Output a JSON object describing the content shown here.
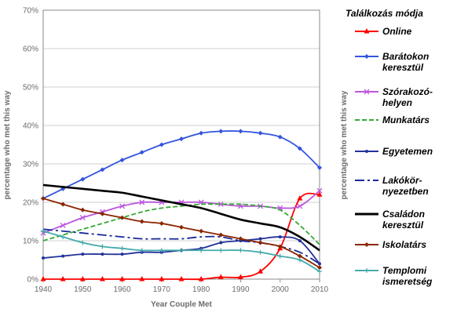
{
  "chart_data": {
    "type": "line",
    "xlabel": "Year Couple Met",
    "ylabel": "percentage who met this way",
    "ylabel_right": "percentage who met this way",
    "xlim": [
      1940,
      2010
    ],
    "ylim": [
      0,
      70
    ],
    "x_ticks": [
      "1940",
      "1950",
      "1960",
      "1970",
      "1980",
      "1990",
      "2000",
      "2010"
    ],
    "y_ticks": [
      "0%",
      "10%",
      "20%",
      "30%",
      "40%",
      "50%",
      "60%",
      "70%"
    ],
    "grid": true,
    "legend_title": "Találkozás módja",
    "legend_position": "right",
    "x": [
      1940,
      1945,
      1950,
      1955,
      1960,
      1965,
      1970,
      1975,
      1980,
      1985,
      1990,
      1995,
      2000,
      2005,
      2010
    ],
    "series": [
      {
        "name": "Online",
        "label_lines": [
          "Online"
        ],
        "color": "#ff0000",
        "marker": "triangle",
        "dash": "",
        "values": [
          0,
          0,
          0,
          0,
          0,
          0,
          0,
          0,
          0,
          0.5,
          0.5,
          2,
          8,
          21,
          22
        ]
      },
      {
        "name": "Barátokon keresztül",
        "label_lines": [
          "Barátokon",
          "keresztül"
        ],
        "color": "#3355dd",
        "marker": "diamond",
        "dash": "",
        "values": [
          21,
          23.5,
          26,
          28.5,
          31,
          33,
          35,
          36.5,
          38,
          38.5,
          38.5,
          38,
          37,
          34,
          29
        ]
      },
      {
        "name": "Szórakozóhelyen",
        "label_lines": [
          "Szórakozó-",
          "helyen"
        ],
        "color": "#bb55dd",
        "marker": "x",
        "dash": "",
        "values": [
          12,
          14,
          16,
          17.5,
          19,
          20,
          20,
          20,
          20,
          19.5,
          19,
          19,
          18.5,
          19,
          23
        ]
      },
      {
        "name": "Munkatárs",
        "label_lines": [
          "Munkatárs"
        ],
        "color": "#33aa33",
        "marker": "",
        "dash": "6,3",
        "values": [
          10,
          11.5,
          13,
          14.5,
          16,
          17.5,
          18.5,
          19,
          19.5,
          19.5,
          19.5,
          19,
          18,
          14,
          9
        ]
      },
      {
        "name": "Egyetemen",
        "label_lines": [
          "Egyetemen"
        ],
        "color": "#223399",
        "marker": "dot",
        "dash": "",
        "values": [
          5.5,
          6,
          6.5,
          6.5,
          6.5,
          7,
          7,
          7.5,
          8,
          9.5,
          10,
          10.5,
          11,
          10,
          4
        ]
      },
      {
        "name": "Lakókörnyezetben",
        "label_lines": [
          "Lakókör-",
          "nyezetben"
        ],
        "color": "#1a2a99",
        "marker": "",
        "dash": "12,4,3,4",
        "values": [
          13,
          12.5,
          12,
          11.5,
          11,
          10.5,
          10.5,
          10.5,
          11,
          11,
          10,
          9.5,
          8.5,
          7,
          4
        ]
      },
      {
        "name": "Családon keresztül",
        "label_lines": [
          "Családon",
          "keresztül"
        ],
        "color": "#000000",
        "marker": "",
        "dash": "",
        "values": [
          24.5,
          24,
          23.5,
          23,
          22.5,
          21.5,
          20.5,
          19.5,
          18.5,
          17,
          15.5,
          14.5,
          13.5,
          11,
          7.5
        ]
      },
      {
        "name": "Iskolatárs",
        "label_lines": [
          "Iskolatárs"
        ],
        "color": "#8b2500",
        "marker": "diamond",
        "dash": "",
        "values": [
          21,
          19.5,
          18,
          17,
          16,
          15,
          14.5,
          13.5,
          12.5,
          11.5,
          10.5,
          9.5,
          8.5,
          6,
          3
        ]
      },
      {
        "name": "Templomi ismeretség",
        "label_lines": [
          "Templomi",
          "ismeretség"
        ],
        "color": "#44aaaa",
        "marker": "plus",
        "dash": "",
        "values": [
          12.5,
          11,
          9.5,
          8.5,
          8,
          7.5,
          7.5,
          7.5,
          7.5,
          7.5,
          7.5,
          7,
          6,
          5,
          2
        ]
      }
    ]
  }
}
